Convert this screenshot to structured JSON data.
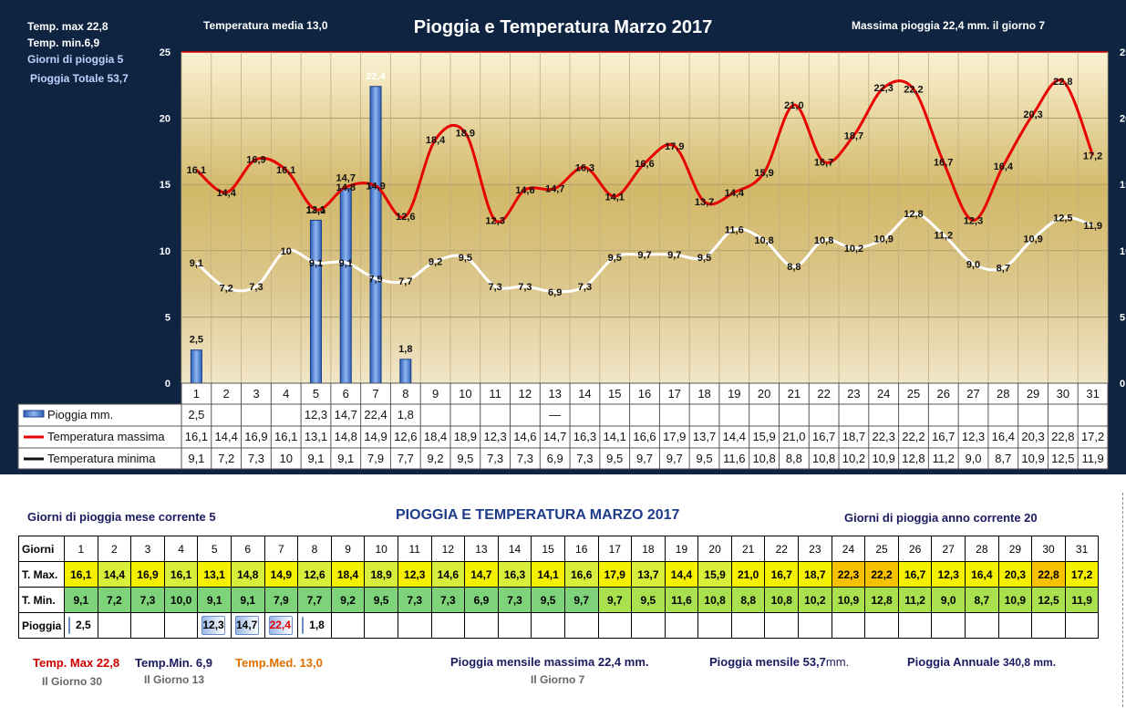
{
  "header": {
    "tmax_label": "Temp. max  22,8",
    "tmin_label": "Temp.  min.6,9",
    "rain_days_label": "Giorni di pioggia  5",
    "rain_total_label": "Pioggia Totale  53,7",
    "tmed_label": "Temperatura media  13,0",
    "title": "Pioggia e Temperatura Marzo 2017",
    "max_rain_label": "Massima pioggia  22,4 mm.  il giorno  7"
  },
  "chart_data": {
    "type": "bar+line",
    "days": [
      "1",
      "2",
      "3",
      "4",
      "5",
      "6",
      "7",
      "8",
      "9",
      "10",
      "11",
      "12",
      "13",
      "14",
      "15",
      "16",
      "17",
      "18",
      "19",
      "20",
      "21",
      "22",
      "23",
      "24",
      "25",
      "26",
      "27",
      "28",
      "29",
      "30",
      "31"
    ],
    "ylim": [
      0,
      25
    ],
    "yticks": [
      "0",
      "5",
      "10",
      "15",
      "20",
      "25"
    ],
    "series": [
      {
        "name": "Pioggia mm.",
        "kind": "bar",
        "color": "#4a7fd4",
        "values": [
          2.5,
          null,
          null,
          null,
          12.3,
          14.7,
          22.4,
          1.8,
          null,
          null,
          null,
          null,
          null,
          null,
          null,
          null,
          null,
          null,
          null,
          null,
          null,
          null,
          null,
          null,
          null,
          null,
          null,
          null,
          null,
          null,
          null
        ],
        "labels": [
          "2,5",
          "",
          "",
          "",
          "12,3",
          "14,7",
          "22,4",
          "1,8",
          "",
          "",
          "",
          "",
          "—",
          "",
          "",
          "",
          "",
          "",
          "",
          "",
          "",
          "",
          "",
          "",
          "",
          "",
          "",
          "",
          "",
          "",
          ""
        ]
      },
      {
        "name": "Temperatura massima",
        "kind": "line",
        "color": "#e80000",
        "values": [
          16.1,
          14.4,
          16.9,
          16.1,
          13.1,
          14.8,
          14.9,
          12.6,
          18.4,
          18.9,
          12.3,
          14.6,
          14.7,
          16.3,
          14.1,
          16.6,
          17.9,
          13.7,
          14.4,
          15.9,
          21.0,
          16.7,
          18.7,
          22.3,
          22.2,
          16.7,
          12.3,
          16.4,
          20.3,
          22.8,
          17.2
        ],
        "labels": [
          "16,1",
          "14,4",
          "16,9",
          "16,1",
          "13,1",
          "14,8",
          "14,9",
          "12,6",
          "18,4",
          "18,9",
          "12,3",
          "14,6",
          "14,7",
          "16,3",
          "14,1",
          "16,6",
          "17,9",
          "13,7",
          "14,4",
          "15,9",
          "21,0",
          "16,7",
          "18,7",
          "22,3",
          "22,2",
          "16,7",
          "12,3",
          "16,4",
          "20,3",
          "22,8",
          "17,2"
        ]
      },
      {
        "name": "Temperatura minima",
        "kind": "line",
        "color": "#ffffff",
        "values": [
          9.1,
          7.2,
          7.3,
          10,
          9.1,
          9.1,
          7.9,
          7.7,
          9.2,
          9.5,
          7.3,
          7.3,
          6.9,
          7.3,
          9.5,
          9.7,
          9.7,
          9.5,
          11.6,
          10.8,
          8.8,
          10.8,
          10.2,
          10.9,
          12.8,
          11.2,
          9.0,
          8.7,
          10.9,
          12.5,
          11.9
        ],
        "labels": [
          "9,1",
          "7,2",
          "7,3",
          "10",
          "9,1",
          "9,1",
          "7,9",
          "7,7",
          "9,2",
          "9,5",
          "7,3",
          "7,3",
          "6,9",
          "7,3",
          "9,5",
          "9,7",
          "9,7",
          "9,5",
          "11,6",
          "10,8",
          "8,8",
          "10,8",
          "10,2",
          "10,9",
          "12,8",
          "11,2",
          "9,0",
          "8,7",
          "10,9",
          "12,5",
          "11,9"
        ]
      }
    ]
  },
  "summary": {
    "rain_days_month": "Giorni di pioggia mese corrente   5",
    "title": "PIOGGIA E TEMPERATURA MARZO 2017",
    "rain_days_year": "Giorni di pioggia anno corrente  20",
    "row_labels": {
      "days": "Giorni",
      "tmax": "T. Max.",
      "tmin": "T. Min.",
      "rain": "Pioggia"
    },
    "tmax": [
      "16,1",
      "14,4",
      "16,9",
      "16,1",
      "13,1",
      "14,8",
      "14,9",
      "12,6",
      "18,4",
      "18,9",
      "12,3",
      "14,6",
      "14,7",
      "16,3",
      "14,1",
      "16,6",
      "17,9",
      "13,7",
      "14,4",
      "15,9",
      "21,0",
      "16,7",
      "18,7",
      "22,3",
      "22,2",
      "16,7",
      "12,3",
      "16,4",
      "20,3",
      "22,8",
      "17,2"
    ],
    "tmin": [
      "9,1",
      "7,2",
      "7,3",
      "10,0",
      "9,1",
      "9,1",
      "7,9",
      "7,7",
      "9,2",
      "9,5",
      "7,3",
      "7,3",
      "6,9",
      "7,3",
      "9,5",
      "9,7",
      "9,7",
      "9,5",
      "11,6",
      "10,8",
      "8,8",
      "10,8",
      "10,2",
      "10,9",
      "12,8",
      "11,2",
      "9,0",
      "8,7",
      "10,9",
      "12,5",
      "11,9"
    ],
    "rain": [
      "2,5",
      "",
      "",
      "",
      "12,3",
      "14,7",
      "22,4",
      "1,8",
      "",
      "",
      "",
      "",
      "",
      "",
      "",
      "",
      "",
      "",
      "",
      "",
      "",
      "",
      "",
      "",
      "",
      "",
      "",
      "",
      "",
      "",
      ""
    ],
    "colors": {
      "tmax_yellow": "#f4f000",
      "tmax_yellowgreen": "#d8ee3a",
      "tmax_orange": "#f6c200",
      "tmin_green": "#7ed27a",
      "tmin_lightgreen": "#a8e04e"
    },
    "footer": {
      "tmax": "Temp. Max 22,8",
      "tmax_day": "Il Giorno 30",
      "tmin": "Temp.Min. 6,9",
      "tmin_day": "Il Giorno 13",
      "tmed": "Temp.Med. 13,0",
      "max_rain": "Pioggia mensile massima 22,4  mm.",
      "max_rain_day": "Il Giorno  7",
      "month_rain_pre": "Pioggia mensile 53,7",
      "month_rain_unit": "mm.",
      "year_rain_pre": "Pioggia Annuale ",
      "year_rain_val": "340,8",
      "year_rain_unit": " mm."
    }
  }
}
